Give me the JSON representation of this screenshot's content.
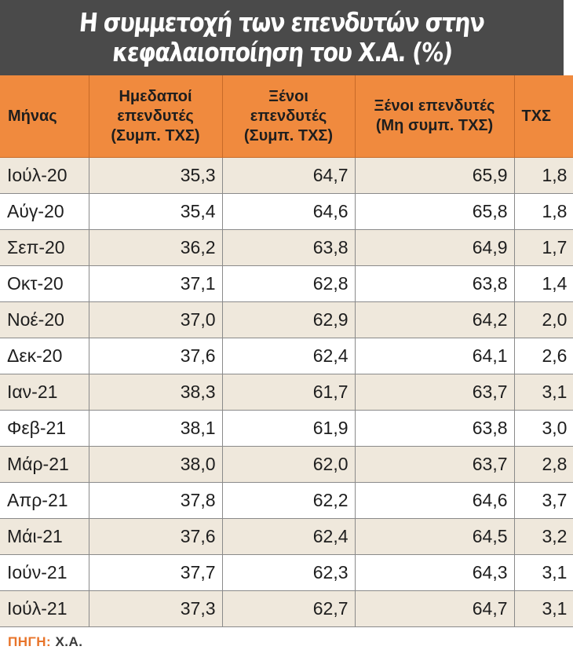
{
  "title": {
    "line1": "Η συμμετοχή των επενδυτών στην",
    "line2": "κεφαλαιοποίηση του Χ.Α. (%)"
  },
  "colors": {
    "title_bg": "#4a4a4a",
    "header_bg": "#f08a3e",
    "stripe_bg": "#efe8dc",
    "source_label": "#e8742a"
  },
  "source": {
    "label": "ΠΗΓΗ:",
    "value": "Χ.Α."
  },
  "chart_data": {
    "type": "table",
    "title": "Η συμμετοχή των επενδυτών στην κεφαλαιοποίηση του Χ.Α. (%)",
    "columns": [
      "Μήνας",
      "Ημεδαποί επενδυτές (Συμπ. ΤΧΣ)",
      "Ξένοι επενδυτές (Συμπ. ΤΧΣ)",
      "Ξένοι επενδυτές (Μη συμπ. ΤΧΣ)",
      "ΤΧΣ"
    ],
    "rows": [
      [
        "Ιούλ-20",
        "35,3",
        "64,7",
        "65,9",
        "1,8"
      ],
      [
        "Αύγ-20",
        "35,4",
        "64,6",
        "65,8",
        "1,8"
      ],
      [
        "Σεπ-20",
        "36,2",
        "63,8",
        "64,9",
        "1,7"
      ],
      [
        "Οκτ-20",
        "37,1",
        "62,8",
        "63,8",
        "1,4"
      ],
      [
        "Νοέ-20",
        "37,0",
        "62,9",
        "64,2",
        "2,0"
      ],
      [
        "Δεκ-20",
        "37,6",
        "62,4",
        "64,1",
        "2,6"
      ],
      [
        "Ιαν-21",
        "38,3",
        "61,7",
        "63,7",
        "3,1"
      ],
      [
        "Φεβ-21",
        "38,1",
        "61,9",
        "63,8",
        "3,0"
      ],
      [
        "Μάρ-21",
        "38,0",
        "62,0",
        "63,7",
        "2,8"
      ],
      [
        "Απρ-21",
        "37,8",
        "62,2",
        "64,6",
        "3,7"
      ],
      [
        "Μάι-21",
        "37,6",
        "62,4",
        "64,5",
        "3,2"
      ],
      [
        "Ιούν-21",
        "37,7",
        "62,3",
        "64,3",
        "3,1"
      ],
      [
        "Ιούλ-21",
        "37,3",
        "62,7",
        "64,7",
        "3,1"
      ]
    ]
  }
}
